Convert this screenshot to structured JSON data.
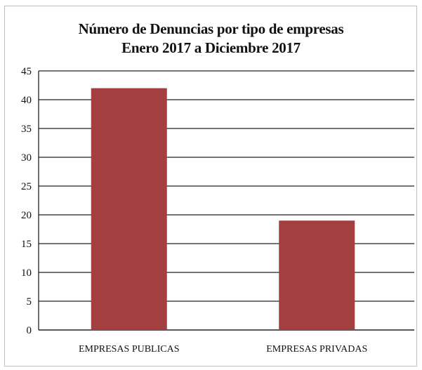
{
  "chart_data": {
    "type": "bar",
    "title": [
      "Número de Denuncias por tipo de empresas",
      "Enero 2017 a Diciembre 2017"
    ],
    "categories": [
      "EMPRESAS PUBLICAS",
      "EMPRESAS PRIVADAS"
    ],
    "values": [
      42,
      19
    ],
    "ylim": [
      0,
      45
    ],
    "yticks": [
      0,
      5,
      10,
      15,
      20,
      25,
      30,
      35,
      40,
      45
    ],
    "grid": true,
    "legend": "none",
    "bar_color": "#a33f3f",
    "grid_color": "#222222"
  }
}
